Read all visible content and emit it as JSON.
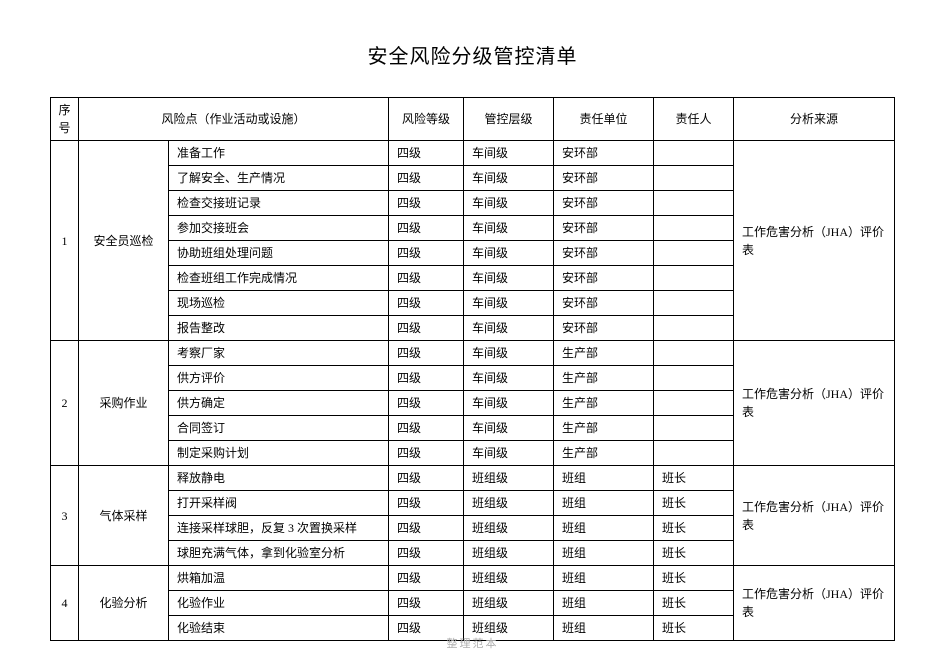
{
  "title": "安全风险分级管控清单",
  "columns": {
    "index": "序号",
    "risk_point": "风险点（作业活动或设施）",
    "risk_level": "风险等级",
    "control_level": "管控层级",
    "unit": "责任单位",
    "responsible": "责任人",
    "source": "分析来源"
  },
  "groups": [
    {
      "index": "1",
      "category": "安全员巡检",
      "source": "工作危害分析（JHA）评价表",
      "rows": [
        {
          "activity": "准备工作",
          "risk_level": "四级",
          "control_level": "车间级",
          "unit": "安环部",
          "responsible": ""
        },
        {
          "activity": "了解安全、生产情况",
          "risk_level": "四级",
          "control_level": "车间级",
          "unit": "安环部",
          "responsible": ""
        },
        {
          "activity": "检查交接班记录",
          "risk_level": "四级",
          "control_level": "车间级",
          "unit": "安环部",
          "responsible": ""
        },
        {
          "activity": "参加交接班会",
          "risk_level": "四级",
          "control_level": "车间级",
          "unit": "安环部",
          "responsible": ""
        },
        {
          "activity": "协助班组处理问题",
          "risk_level": "四级",
          "control_level": "车间级",
          "unit": "安环部",
          "responsible": ""
        },
        {
          "activity": "检查班组工作完成情况",
          "risk_level": "四级",
          "control_level": "车间级",
          "unit": "安环部",
          "responsible": ""
        },
        {
          "activity": "现场巡检",
          "risk_level": "四级",
          "control_level": "车间级",
          "unit": "安环部",
          "responsible": ""
        },
        {
          "activity": "报告整改",
          "risk_level": "四级",
          "control_level": "车间级",
          "unit": "安环部",
          "responsible": ""
        }
      ]
    },
    {
      "index": "2",
      "category": "采购作业",
      "source": "工作危害分析（JHA）评价表",
      "rows": [
        {
          "activity": "考察厂家",
          "risk_level": "四级",
          "control_level": "车间级",
          "unit": "生产部",
          "responsible": ""
        },
        {
          "activity": "供方评价",
          "risk_level": "四级",
          "control_level": "车间级",
          "unit": "生产部",
          "responsible": ""
        },
        {
          "activity": "供方确定",
          "risk_level": "四级",
          "control_level": "车间级",
          "unit": "生产部",
          "responsible": ""
        },
        {
          "activity": "合同签订",
          "risk_level": "四级",
          "control_level": "车间级",
          "unit": "生产部",
          "responsible": ""
        },
        {
          "activity": "制定采购计划",
          "risk_level": "四级",
          "control_level": "车间级",
          "unit": "生产部",
          "responsible": ""
        }
      ]
    },
    {
      "index": "3",
      "category": "气体采样",
      "source": "工作危害分析（JHA）评价表",
      "rows": [
        {
          "activity": "释放静电",
          "risk_level": "四级",
          "control_level": "班组级",
          "unit": "班组",
          "responsible": "班长"
        },
        {
          "activity": "打开采样阀",
          "risk_level": "四级",
          "control_level": "班组级",
          "unit": "班组",
          "responsible": "班长"
        },
        {
          "activity": "连接采样球胆，反复 3 次置换采样",
          "risk_level": "四级",
          "control_level": "班组级",
          "unit": "班组",
          "responsible": "班长"
        },
        {
          "activity": "球胆充满气体，拿到化验室分析",
          "risk_level": "四级",
          "control_level": "班组级",
          "unit": "班组",
          "responsible": "班长"
        }
      ]
    },
    {
      "index": "4",
      "category": "化验分析",
      "source": "工作危害分析（JHA）评价表",
      "rows": [
        {
          "activity": "烘箱加温",
          "risk_level": "四级",
          "control_level": "班组级",
          "unit": "班组",
          "responsible": "班长"
        },
        {
          "activity": "化验作业",
          "risk_level": "四级",
          "control_level": "班组级",
          "unit": "班组",
          "responsible": "班长"
        },
        {
          "activity": "化验结束",
          "risk_level": "四级",
          "control_level": "班组级",
          "unit": "班组",
          "responsible": "班长"
        }
      ]
    }
  ],
  "footer": "整理范本",
  "style": {
    "title_fontsize": 20,
    "cell_fontsize": 12,
    "border_color": "#000000",
    "background": "#ffffff",
    "footer_color": "#b0b0b0"
  }
}
